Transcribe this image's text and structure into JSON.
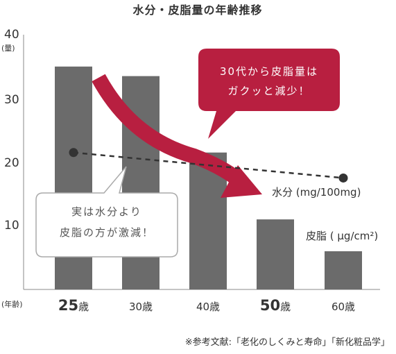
{
  "chart_data": {
    "type": "bar",
    "title": "水分・皮脂量の年齢推移",
    "ylabel": "(量)",
    "xlabel": "(年齢)",
    "ylim": [
      0,
      40
    ],
    "yticks": [
      "10",
      "20",
      "30",
      "40"
    ],
    "categories": [
      "25歳",
      "30歳",
      "40歳",
      "50歳",
      "60歳"
    ],
    "category_parts": [
      {
        "num": "25",
        "suffix": "歳",
        "emphasis": true
      },
      {
        "num": "30",
        "suffix": "歳",
        "emphasis": false
      },
      {
        "num": "40",
        "suffix": "歳",
        "emphasis": false
      },
      {
        "num": "50",
        "suffix": "歳",
        "emphasis": true
      },
      {
        "num": "60",
        "suffix": "歳",
        "emphasis": false
      }
    ],
    "series": [
      {
        "name": "皮脂 ( μg/cm²)",
        "type": "bar",
        "values": [
          35,
          33.5,
          21.5,
          11,
          6
        ]
      },
      {
        "name": "水分 (mg/100mg)",
        "type": "line",
        "style": "dashed",
        "points": [
          {
            "x": "25歳",
            "y": 21.5
          },
          {
            "x": "60歳",
            "y": 17.5
          }
        ]
      }
    ],
    "annotations": {
      "red_callout": [
        "30代から皮脂量は",
        "ガクッと減少！"
      ],
      "white_callout": [
        "実は水分より",
        "皮脂の方が激減！"
      ]
    },
    "colors": {
      "bar": "#6b6b6b",
      "accent": "#b81f40",
      "line": "#333333",
      "callout_border": "#aaaaaa"
    },
    "grid": false
  },
  "footer": {
    "source": "※参考文献:「老化のしくみと寿命」「新化粧品学」"
  }
}
